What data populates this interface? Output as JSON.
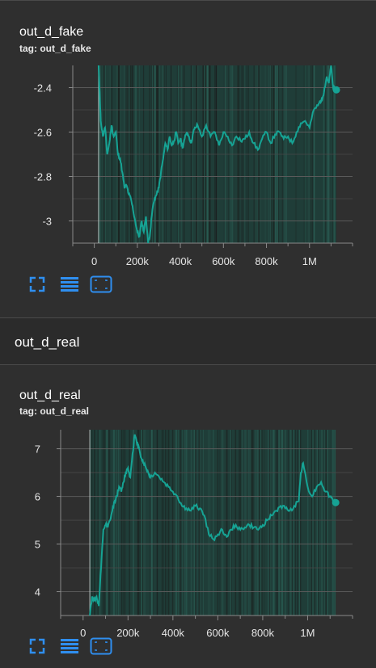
{
  "cards": [
    {
      "title": "out_d_fake",
      "tag": "tag: out_d_fake"
    },
    {
      "title": "out_d_real",
      "tag": "tag: out_d_real"
    }
  ],
  "section": {
    "title": "out_d_real"
  },
  "colors": {
    "line": "#16a394",
    "plot_bg": "#1f3d38",
    "background": "#2f2f2f"
  },
  "toolbar_icons": [
    "fullscreen-icon",
    "data-table-icon",
    "fit-domain-icon"
  ],
  "chart_data": [
    {
      "type": "line",
      "title": "out_d_fake",
      "xlabel": "",
      "ylabel": "",
      "xlim": [
        -100000,
        1200000
      ],
      "ylim": [
        -3.1,
        -2.3
      ],
      "xticks": [
        0,
        200000,
        400000,
        600000,
        800000,
        1000000
      ],
      "xtick_labels": [
        "0",
        "200k",
        "400k",
        "600k",
        "800k",
        "1M"
      ],
      "yticks": [
        -2.4,
        -2.6,
        -2.8,
        -3.0
      ],
      "ytick_labels": [
        "-2.4",
        "-2.6",
        "-2.8",
        "-3"
      ],
      "grid": true,
      "series": [
        {
          "x": [
            20000,
            25000,
            30000,
            40000,
            50000,
            60000,
            70000,
            80000,
            90000,
            100000,
            110000,
            120000,
            130000,
            140000,
            150000,
            160000,
            170000,
            180000,
            190000,
            200000,
            210000,
            220000,
            230000,
            240000,
            250000,
            260000,
            270000,
            280000,
            290000,
            300000,
            310000,
            320000,
            330000,
            340000,
            350000,
            360000,
            370000,
            380000,
            390000,
            400000,
            410000,
            420000,
            430000,
            440000,
            450000,
            460000,
            470000,
            480000,
            500000,
            520000,
            540000,
            560000,
            580000,
            600000,
            620000,
            640000,
            660000,
            680000,
            700000,
            720000,
            740000,
            760000,
            780000,
            800000,
            820000,
            840000,
            860000,
            880000,
            900000,
            920000,
            940000,
            960000,
            980000,
            1000000,
            1020000,
            1040000,
            1050000,
            1060000,
            1070000,
            1080000,
            1090000,
            1100000,
            1110000,
            1125000
          ],
          "y": [
            -2.3,
            -2.42,
            -2.55,
            -2.62,
            -2.58,
            -2.7,
            -2.65,
            -2.57,
            -2.62,
            -2.6,
            -2.7,
            -2.72,
            -2.78,
            -2.85,
            -2.84,
            -2.88,
            -2.9,
            -2.95,
            -3.0,
            -3.05,
            -3.07,
            -3.0,
            -3.05,
            -2.98,
            -3.1,
            -3.05,
            -2.95,
            -2.9,
            -2.88,
            -2.85,
            -2.78,
            -2.72,
            -2.65,
            -2.68,
            -2.62,
            -2.66,
            -2.64,
            -2.6,
            -2.65,
            -2.63,
            -2.67,
            -2.63,
            -2.6,
            -2.62,
            -2.65,
            -2.6,
            -2.58,
            -2.57,
            -2.62,
            -2.57,
            -2.62,
            -2.6,
            -2.66,
            -2.6,
            -2.62,
            -2.66,
            -2.62,
            -2.64,
            -2.63,
            -2.6,
            -2.65,
            -2.68,
            -2.63,
            -2.6,
            -2.65,
            -2.61,
            -2.6,
            -2.63,
            -2.62,
            -2.65,
            -2.6,
            -2.56,
            -2.55,
            -2.58,
            -2.5,
            -2.48,
            -2.46,
            -2.45,
            -2.4,
            -2.35,
            -2.38,
            -2.3,
            -2.4,
            -2.41
          ]
        }
      ]
    },
    {
      "type": "line",
      "title": "out_d_real",
      "xlabel": "",
      "ylabel": "",
      "xlim": [
        -100000,
        1200000
      ],
      "ylim": [
        3.5,
        7.4
      ],
      "xticks": [
        0,
        200000,
        400000,
        600000,
        800000,
        1000000
      ],
      "xtick_labels": [
        "0",
        "200k",
        "400k",
        "600k",
        "800k",
        "1M"
      ],
      "yticks": [
        4,
        5,
        6,
        7
      ],
      "ytick_labels": [
        "4",
        "5",
        "6",
        "7"
      ],
      "grid": true,
      "series": [
        {
          "x": [
            30000,
            40000,
            50000,
            60000,
            70000,
            80000,
            90000,
            100000,
            110000,
            120000,
            130000,
            140000,
            150000,
            160000,
            170000,
            180000,
            190000,
            200000,
            210000,
            220000,
            230000,
            240000,
            250000,
            260000,
            270000,
            280000,
            290000,
            300000,
            320000,
            340000,
            360000,
            380000,
            400000,
            420000,
            440000,
            460000,
            480000,
            500000,
            520000,
            540000,
            560000,
            580000,
            600000,
            620000,
            640000,
            660000,
            680000,
            700000,
            720000,
            740000,
            760000,
            780000,
            800000,
            820000,
            840000,
            860000,
            880000,
            900000,
            920000,
            940000,
            960000,
            970000,
            980000,
            1000000,
            1020000,
            1040000,
            1060000,
            1080000,
            1100000,
            1110000,
            1125000
          ],
          "y": [
            3.5,
            3.9,
            3.8,
            3.9,
            3.7,
            4.5,
            5.3,
            5.4,
            5.35,
            5.5,
            5.7,
            5.9,
            6.0,
            6.2,
            6.1,
            6.3,
            6.5,
            6.6,
            6.4,
            6.9,
            7.3,
            7.1,
            7.0,
            6.8,
            6.7,
            6.6,
            6.5,
            6.4,
            6.5,
            6.4,
            6.3,
            6.2,
            6.1,
            6.0,
            5.8,
            5.75,
            5.7,
            5.8,
            5.75,
            5.6,
            5.2,
            5.1,
            5.2,
            5.3,
            5.15,
            5.3,
            5.4,
            5.3,
            5.35,
            5.4,
            5.35,
            5.3,
            5.4,
            5.5,
            5.6,
            5.7,
            5.8,
            5.75,
            5.7,
            5.8,
            5.9,
            6.5,
            6.7,
            6.2,
            6.0,
            6.2,
            6.3,
            6.1,
            6.0,
            5.95,
            5.87
          ]
        }
      ]
    }
  ]
}
